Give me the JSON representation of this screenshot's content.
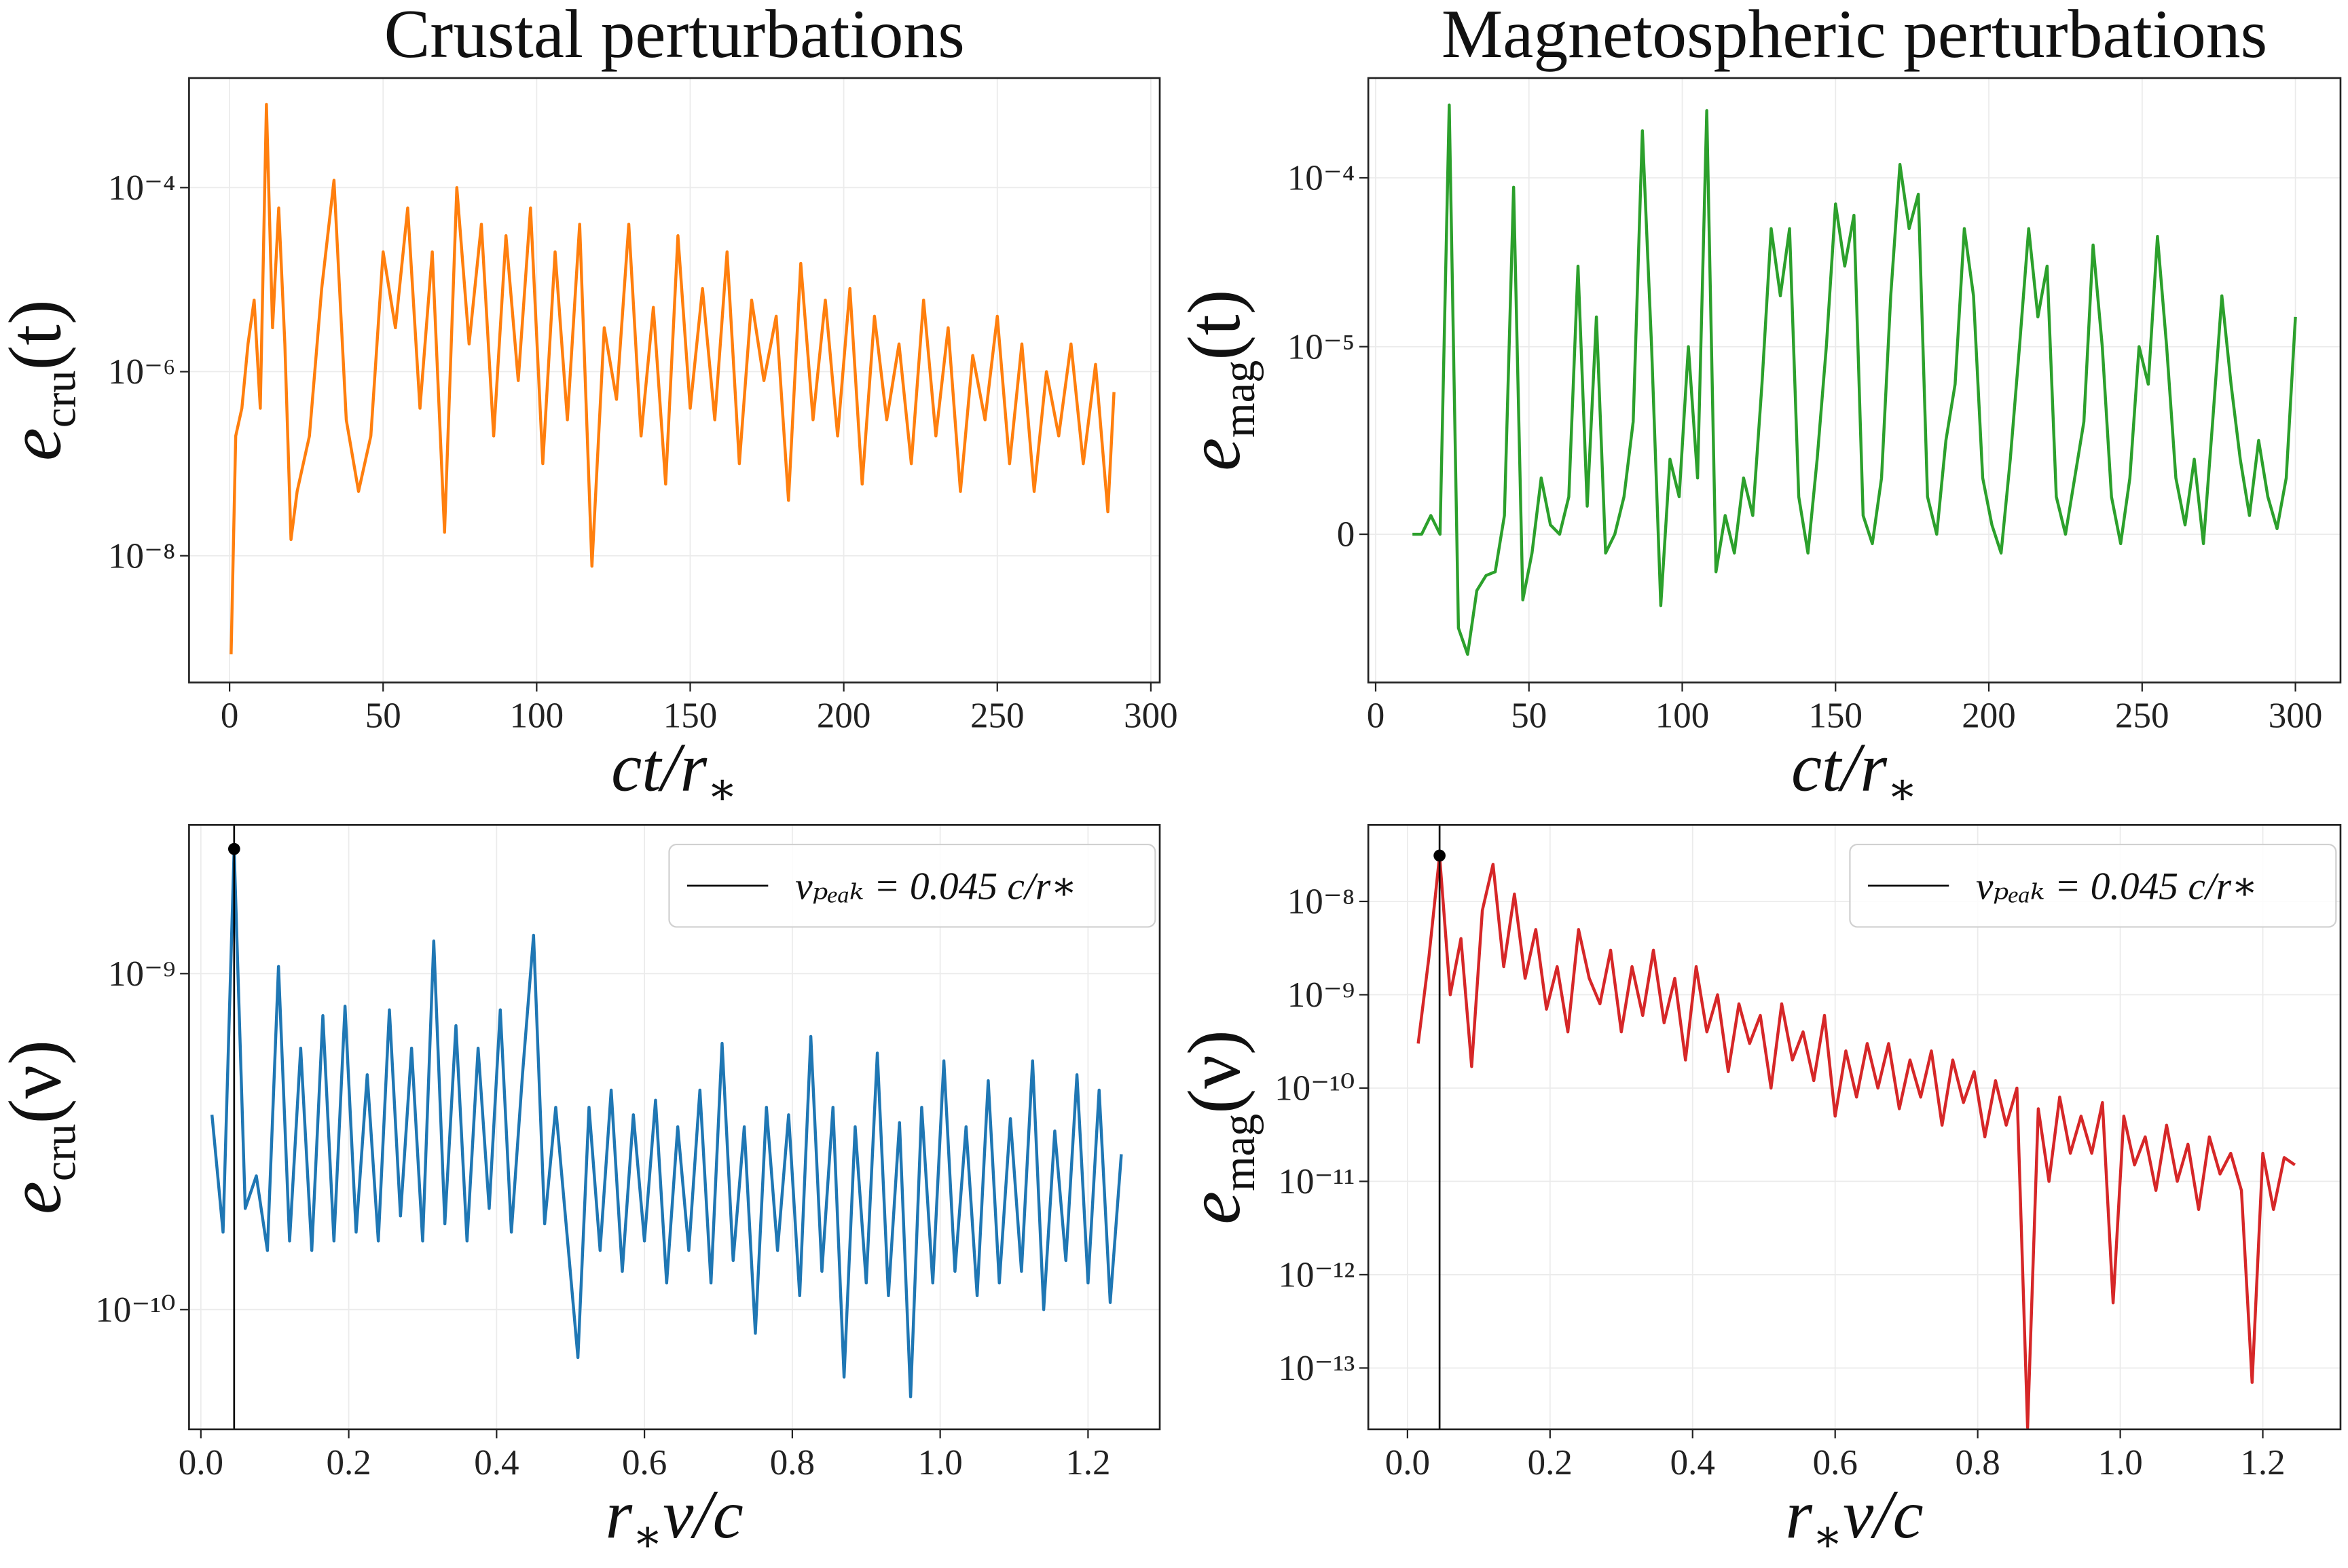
{
  "chart_data": [
    {
      "type": "line",
      "title": "Crustal perturbations",
      "xlabel": [
        "ct/r",
        "∗"
      ],
      "ylabel": [
        "e",
        "cru",
        "(t)"
      ],
      "x": [
        0.5,
        2,
        4,
        6,
        8,
        10,
        12,
        14,
        16,
        18,
        20,
        22,
        26,
        30,
        34,
        38,
        42,
        46,
        50,
        54,
        58,
        62,
        66,
        70,
        74,
        78,
        82,
        86,
        90,
        94,
        98,
        102,
        106,
        110,
        114,
        118,
        122,
        126,
        130,
        134,
        138,
        142,
        146,
        150,
        154,
        158,
        162,
        166,
        170,
        174,
        178,
        182,
        186,
        190,
        194,
        198,
        202,
        206,
        210,
        214,
        218,
        222,
        226,
        230,
        234,
        238,
        242,
        246,
        250,
        254,
        258,
        262,
        266,
        270,
        274,
        278,
        282,
        286,
        288
      ],
      "series": [
        {
          "color": "#ff7f0e",
          "values": [
            8.5e-10,
            2e-07,
            4e-07,
            2e-06,
            6e-06,
            4e-07,
            0.0008,
            3e-06,
            6e-05,
            2e-06,
            1.5e-08,
            5e-08,
            2e-07,
            8e-06,
            0.00012,
            3e-07,
            5e-08,
            2e-07,
            2e-05,
            3e-06,
            6e-05,
            4e-07,
            2e-05,
            1.8e-08,
            0.0001,
            2e-06,
            4e-05,
            2e-07,
            3e-05,
            8e-07,
            6e-05,
            1e-07,
            2e-05,
            3e-07,
            4e-05,
            7.7e-09,
            3e-06,
            5e-07,
            4e-05,
            2e-07,
            5e-06,
            6e-08,
            3e-05,
            4e-07,
            8e-06,
            3e-07,
            2e-05,
            1e-07,
            6e-06,
            8e-07,
            4e-06,
            4e-08,
            1.5e-05,
            3e-07,
            6e-06,
            2e-07,
            8e-06,
            6e-08,
            4e-06,
            3e-07,
            2e-06,
            1e-07,
            6e-06,
            2e-07,
            3e-06,
            5e-08,
            1.5e-06,
            3e-07,
            4e-06,
            1e-07,
            2e-06,
            5e-08,
            1e-06,
            2e-07,
            2e-06,
            1e-07,
            1.2e-06,
            3e-08,
            6e-07
          ]
        }
      ],
      "xlim": [
        -13.2,
        302.9
      ],
      "ylim": [
        4.2e-10,
        0.00155
      ],
      "xticks": [
        0,
        50,
        100,
        150,
        200,
        250,
        300
      ],
      "yticks": [
        {
          "value": 1e-08,
          "label": "10⁻⁸"
        },
        {
          "value": 1e-06,
          "label": "10⁻⁶"
        },
        {
          "value": 0.0001,
          "label": "10⁻⁴"
        }
      ],
      "yscale": "log",
      "grid": true
    },
    {
      "type": "line",
      "title": "Magnetospheric perturbations",
      "xlabel": [
        "ct/r",
        "∗"
      ],
      "ylabel": [
        "e",
        "mag",
        "(t)"
      ],
      "x": [
        12,
        15,
        18,
        21,
        24,
        27,
        30,
        33,
        36,
        39,
        42,
        45,
        48,
        51,
        54,
        57,
        60,
        63,
        66,
        69,
        72,
        75,
        78,
        81,
        84,
        87,
        90,
        93,
        96,
        99,
        102,
        105,
        108,
        111,
        114,
        117,
        120,
        123,
        126,
        129,
        132,
        135,
        138,
        141,
        144,
        147,
        150,
        153,
        156,
        159,
        162,
        165,
        168,
        171,
        174,
        177,
        180,
        183,
        186,
        189,
        192,
        195,
        198,
        201,
        204,
        207,
        210,
        213,
        216,
        219,
        222,
        225,
        228,
        231,
        234,
        237,
        240,
        243,
        246,
        249,
        252,
        255,
        258,
        261,
        264,
        267,
        270,
        273,
        276,
        279,
        282,
        285,
        288,
        291,
        294,
        297,
        300
      ],
      "series": [
        {
          "color": "#2ca02c",
          "values": [
            0,
            0,
            1e-06,
            0,
            0.00027,
            -5e-06,
            -6.4e-06,
            -3e-06,
            -2.2e-06,
            -2e-06,
            1e-06,
            8.8e-05,
            -3.5e-06,
            -1e-06,
            3e-06,
            5e-07,
            0,
            2e-06,
            3e-05,
            1.5e-06,
            1.5e-05,
            -1e-06,
            0,
            2e-06,
            6e-06,
            0.00019,
            1e-05,
            -3.8e-06,
            4e-06,
            2e-06,
            1e-05,
            3e-06,
            0.00025,
            -2e-06,
            1e-06,
            -1e-06,
            3e-06,
            1e-06,
            8e-06,
            5e-05,
            2e-05,
            5e-05,
            2e-06,
            -1e-06,
            4e-06,
            1e-05,
            7e-05,
            3e-05,
            6e-05,
            1e-06,
            -5e-07,
            3e-06,
            2e-05,
            0.00012,
            5e-05,
            8e-05,
            2e-06,
            0,
            5e-06,
            8e-06,
            5e-05,
            2e-05,
            3e-06,
            5e-07,
            -1e-06,
            4e-06,
            1e-05,
            5e-05,
            1.5e-05,
            3e-05,
            2e-06,
            0,
            3e-06,
            6e-06,
            4e-05,
            1e-05,
            2e-06,
            -5e-07,
            3e-06,
            1e-05,
            8e-06,
            4.5e-05,
            1e-05,
            3e-06,
            5e-07,
            4e-06,
            -5e-07,
            6e-06,
            2e-05,
            8e-06,
            4e-06,
            1e-06,
            5e-06,
            2e-06,
            3e-07,
            3e-06,
            1.5e-05
          ]
        }
      ],
      "xlim": [
        -2.4,
        314.7
      ],
      "ylim": [
        -7.9e-06,
        0.00039
      ],
      "xticks": [
        0,
        50,
        100,
        150,
        200,
        250,
        300
      ],
      "yticks": [
        0,
        {
          "value": 1e-05,
          "label": "10⁻⁵"
        },
        {
          "value": 0.0001,
          "label": "10⁻⁴"
        }
      ],
      "yscale": "symlog",
      "linthresh": 1e-05,
      "linscale": 1,
      "grid": true
    },
    {
      "type": "line",
      "xlabel": [
        "r",
        "∗",
        "ν/c"
      ],
      "ylabel": [
        "e",
        "cru",
        "(ν)"
      ],
      "x": [
        0.015,
        0.03,
        0.045,
        0.06,
        0.075,
        0.09,
        0.105,
        0.12,
        0.135,
        0.15,
        0.165,
        0.18,
        0.195,
        0.21,
        0.225,
        0.24,
        0.255,
        0.27,
        0.285,
        0.3,
        0.315,
        0.33,
        0.345,
        0.36,
        0.375,
        0.39,
        0.405,
        0.42,
        0.435,
        0.45,
        0.465,
        0.48,
        0.495,
        0.51,
        0.525,
        0.54,
        0.555,
        0.57,
        0.585,
        0.6,
        0.615,
        0.63,
        0.645,
        0.66,
        0.675,
        0.69,
        0.705,
        0.72,
        0.735,
        0.75,
        0.765,
        0.78,
        0.795,
        0.81,
        0.825,
        0.84,
        0.855,
        0.87,
        0.885,
        0.9,
        0.915,
        0.93,
        0.945,
        0.96,
        0.975,
        0.99,
        1.005,
        1.02,
        1.035,
        1.05,
        1.065,
        1.08,
        1.095,
        1.11,
        1.125,
        1.14,
        1.155,
        1.17,
        1.185,
        1.2,
        1.215,
        1.23,
        1.245
      ],
      "series": [
        {
          "color": "#1f77b4",
          "values": [
            3.8e-10,
            1.7e-10,
            2.35e-09,
            2e-10,
            2.5e-10,
            1.5e-10,
            1.05e-09,
            1.6e-10,
            6e-10,
            1.5e-10,
            7.5e-10,
            1.6e-10,
            8e-10,
            1.7e-10,
            5e-10,
            1.6e-10,
            7.8e-10,
            1.9e-10,
            6e-10,
            1.6e-10,
            1.25e-09,
            1.8e-10,
            7e-10,
            1.6e-10,
            6e-10,
            2e-10,
            7.8e-10,
            1.7e-10,
            5e-10,
            1.3e-09,
            1.8e-10,
            4e-10,
            1.7e-10,
            7.2e-11,
            4e-10,
            1.5e-10,
            4.5e-10,
            1.3e-10,
            3.8e-10,
            1.6e-10,
            4.2e-10,
            1.2e-10,
            3.5e-10,
            1.5e-10,
            4.5e-10,
            1.2e-10,
            6.2e-10,
            1.4e-10,
            3.5e-10,
            8.5e-11,
            4e-10,
            1.5e-10,
            3.8e-10,
            1.1e-10,
            6.5e-10,
            1.3e-10,
            4e-10,
            6.3e-11,
            3.5e-10,
            1.2e-10,
            5.8e-10,
            1.1e-10,
            3.6e-10,
            5.5e-11,
            4e-10,
            1.2e-10,
            5.5e-10,
            1.3e-10,
            3.5e-10,
            1.1e-10,
            4.8e-10,
            1.2e-10,
            3.7e-10,
            1.3e-10,
            5.5e-10,
            1e-10,
            3.4e-10,
            1.4e-10,
            5e-10,
            1.2e-10,
            4.5e-10,
            1.05e-10,
            2.9e-10
          ]
        }
      ],
      "vline": {
        "name": "νₚₑₐₖ = 0.045 c/r∗",
        "x": 0.045,
        "color": "#000000"
      },
      "peak": {
        "x": 0.045,
        "y": 2.35e-09
      },
      "xlim": [
        -0.016,
        1.297
      ],
      "ylim": [
        4.4e-11,
        2.77e-09
      ],
      "xticks": [
        {
          "value": 0,
          "label": "0.0"
        },
        0.2,
        0.4,
        0.6,
        0.8,
        {
          "value": 1,
          "label": "1.0"
        },
        1.2
      ],
      "yticks": [
        {
          "value": 1e-10,
          "label": "10⁻¹⁰"
        },
        {
          "value": 1e-09,
          "label": "10⁻⁹"
        }
      ],
      "yscale": "log",
      "grid": true,
      "legend": "upper right"
    },
    {
      "type": "line",
      "xlabel": [
        "r",
        "∗",
        "ν/c"
      ],
      "ylabel": [
        "e",
        "mag",
        "(ν)"
      ],
      "x": [
        0.015,
        0.03,
        0.045,
        0.06,
        0.075,
        0.09,
        0.105,
        0.12,
        0.135,
        0.15,
        0.165,
        0.18,
        0.195,
        0.21,
        0.225,
        0.24,
        0.255,
        0.27,
        0.285,
        0.3,
        0.315,
        0.33,
        0.345,
        0.36,
        0.375,
        0.39,
        0.405,
        0.42,
        0.435,
        0.45,
        0.465,
        0.48,
        0.495,
        0.51,
        0.525,
        0.54,
        0.555,
        0.57,
        0.585,
        0.6,
        0.615,
        0.63,
        0.645,
        0.66,
        0.675,
        0.69,
        0.705,
        0.72,
        0.735,
        0.75,
        0.765,
        0.78,
        0.795,
        0.81,
        0.825,
        0.84,
        0.855,
        0.87,
        0.885,
        0.9,
        0.915,
        0.93,
        0.945,
        0.96,
        0.975,
        0.99,
        1.005,
        1.02,
        1.035,
        1.05,
        1.065,
        1.08,
        1.095,
        1.11,
        1.125,
        1.14,
        1.155,
        1.17,
        1.185,
        1.2,
        1.215,
        1.23,
        1.245
      ],
      "series": [
        {
          "color": "#d62728",
          "values": [
            3e-10,
            2.5e-09,
            3.1e-08,
            1e-09,
            4e-09,
            1.7e-10,
            8e-09,
            2.5e-08,
            2e-09,
            1.2e-08,
            1.5e-09,
            5e-09,
            7e-10,
            2e-09,
            4e-10,
            5e-09,
            1.5e-09,
            8e-10,
            3e-09,
            4e-10,
            2e-09,
            6e-10,
            3e-09,
            5e-10,
            1.5e-09,
            2e-10,
            2e-09,
            4e-10,
            1e-09,
            1.5e-10,
            8e-10,
            3e-10,
            6e-10,
            1e-10,
            8e-10,
            2e-10,
            4e-10,
            1.2e-10,
            6e-10,
            5e-11,
            2.5e-10,
            8e-11,
            3e-10,
            1e-10,
            3e-10,
            6e-11,
            2e-10,
            8e-11,
            2.5e-10,
            4e-11,
            2e-10,
            7e-11,
            1.5e-10,
            3e-11,
            1.2e-10,
            4e-11,
            1e-10,
            2.3e-14,
            6e-11,
            1e-11,
            8e-11,
            2e-11,
            5e-11,
            2e-11,
            7e-11,
            5e-13,
            5e-11,
            1.5e-11,
            3e-11,
            8e-12,
            4e-11,
            1e-11,
            2.5e-11,
            5e-12,
            3e-11,
            1.2e-11,
            2e-11,
            8e-12,
            7e-14,
            2e-11,
            5e-12,
            1.8e-11,
            1.5e-11
          ]
        }
      ],
      "vline": {
        "name": "νₚₑₐₖ = 0.045 c/r∗",
        "x": 0.045,
        "color": "#000000"
      },
      "peak": {
        "x": 0.045,
        "y": 3.1e-08
      },
      "xlim": [
        -0.055,
        1.309
      ],
      "ylim": [
        2.2e-14,
        6.6e-08
      ],
      "xticks": [
        {
          "value": 0,
          "label": "0.0"
        },
        0.2,
        0.4,
        0.6,
        0.8,
        {
          "value": 1,
          "label": "1.0"
        },
        1.2
      ],
      "yticks": [
        {
          "value": 1e-13,
          "label": "10⁻¹³"
        },
        {
          "value": 1e-12,
          "label": "10⁻¹²"
        },
        {
          "value": 1e-11,
          "label": "10⁻¹¹"
        },
        {
          "value": 1e-10,
          "label": "10⁻¹⁰"
        },
        {
          "value": 1e-09,
          "label": "10⁻⁹"
        },
        {
          "value": 1e-08,
          "label": "10⁻⁸"
        }
      ],
      "yscale": "log",
      "grid": true,
      "legend": "upper right"
    }
  ]
}
